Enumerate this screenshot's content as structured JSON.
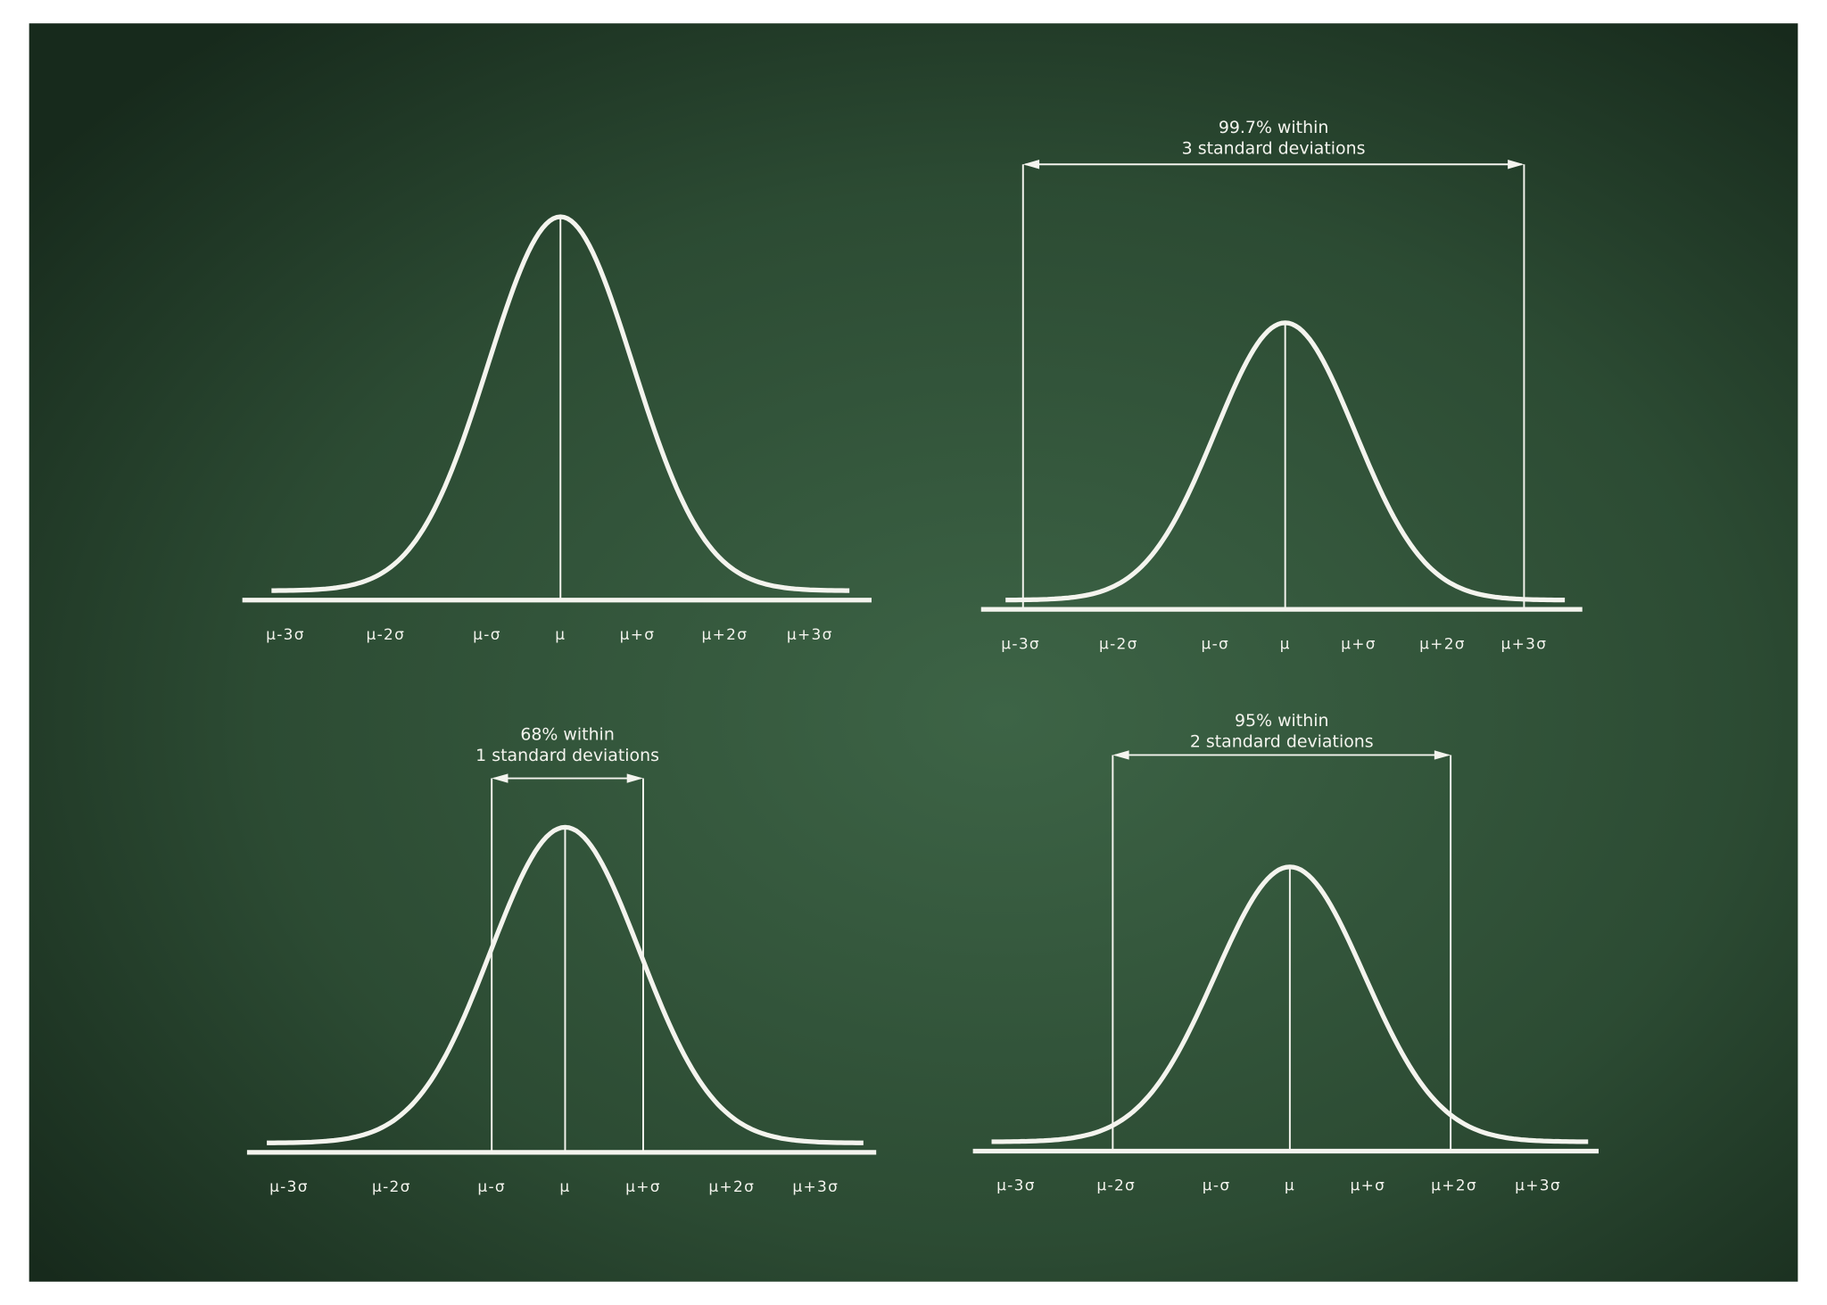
{
  "panels": [
    {
      "axis_labels": [
        "μ-3σ",
        "μ-2σ",
        "μ-σ",
        "μ",
        "μ+σ",
        "μ+2σ",
        "μ+3σ"
      ]
    },
    {
      "axis_labels": [
        "μ-3σ",
        "μ-2σ",
        "μ-σ",
        "μ",
        "μ+σ",
        "μ+2σ",
        "μ+3σ"
      ],
      "annotation": [
        "99.7% within",
        "3 standard deviations"
      ]
    },
    {
      "axis_labels": [
        "μ-3σ",
        "μ-2σ",
        "μ-σ",
        "μ",
        "μ+σ",
        "μ+2σ",
        "μ+3σ"
      ],
      "annotation": [
        "68% within",
        "1 standard deviations"
      ]
    },
    {
      "axis_labels": [
        "μ-3σ",
        "μ-2σ",
        "μ-σ",
        "μ",
        "μ+σ",
        "μ+2σ",
        "μ+3σ"
      ],
      "annotation": [
        "95% within",
        "2 standard deviations"
      ]
    }
  ]
}
